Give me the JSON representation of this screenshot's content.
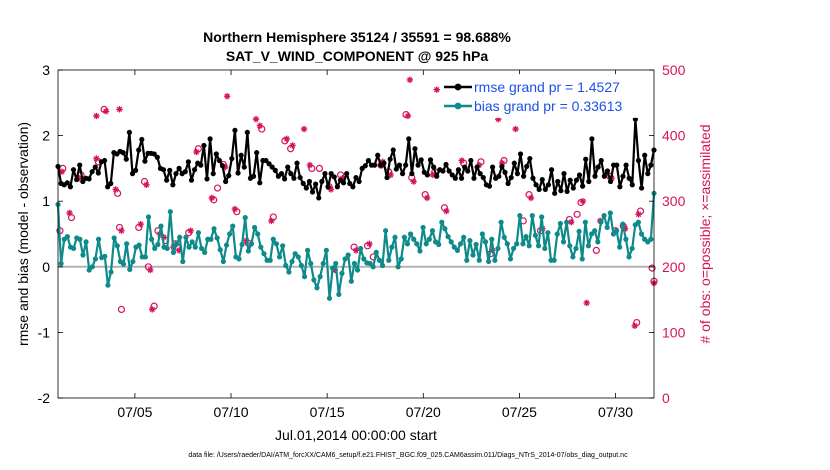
{
  "chart_data": {
    "type": "line",
    "title": "Northern Hemisphere 35124 / 35591 = 98.688%",
    "subtitle": "SAT_V_WIND_COMPONENT @ 925 hPa",
    "xlabel": "Jul.01,2014 00:00:00 start",
    "ylabel_left": "rmse and bias (model - observation)",
    "ylabel_right": "# of obs: o=possible; ×=assimilated",
    "ylim_left": [
      -2,
      3
    ],
    "ylim_right": [
      0,
      500
    ],
    "xlim": [
      0,
      31
    ],
    "left_ticks": [
      -2,
      -1,
      0,
      1,
      2,
      3
    ],
    "right_ticks": [
      0,
      100,
      200,
      300,
      400,
      500
    ],
    "x_ticks": [
      {
        "x": 4,
        "label": "07/05"
      },
      {
        "x": 9,
        "label": "07/10"
      },
      {
        "x": 14,
        "label": "07/15"
      },
      {
        "x": 19,
        "label": "07/20"
      },
      {
        "x": 24,
        "label": "07/25"
      },
      {
        "x": 29,
        "label": "07/30"
      }
    ],
    "zero_line": 0,
    "footnote": "data file: /Users/raeder/DAI/ATM_forcXX/CAM6_setup/f.e21.FHIST_BGC.f09_025.CAM6assim.011/Diags_NTrS_2014-07/obs_diag_output.nc",
    "legend": {
      "position": "top-right",
      "entries": [
        "rmse grand pr = 1.4527",
        "bias grand pr = 0.33613"
      ]
    },
    "series": [
      {
        "name": "rmse grand pr = 1.4527",
        "color": "#000000",
        "axis": "left",
        "values": [
          1.53,
          1.27,
          1.25,
          1.28,
          1.22,
          1.48,
          1.33,
          1.55,
          1.3,
          1.35,
          1.34,
          1.45,
          1.52,
          1.43,
          1.6,
          1.62,
          1.22,
          1.27,
          1.74,
          1.72,
          1.76,
          1.74,
          1.64,
          2.05,
          1.42,
          1.47,
          1.78,
          1.94,
          1.61,
          1.73,
          1.73,
          1.72,
          1.67,
          1.5,
          1.48,
          1.32,
          1.47,
          1.25,
          1.42,
          1.5,
          1.42,
          1.45,
          1.6,
          1.32,
          1.48,
          1.58,
          1.55,
          1.85,
          1.34,
          1.95,
          1.42,
          1.72,
          1.62,
          1.54,
          1.3,
          1.39,
          1.65,
          2.08,
          1.43,
          1.7,
          1.52,
          2.05,
          1.35,
          1.38,
          1.74,
          1.28,
          1.62,
          1.62,
          1.57,
          1.52,
          1.47,
          1.38,
          1.42,
          1.34,
          1.52,
          1.42,
          1.35,
          1.58,
          1.36,
          1.27,
          1.2,
          1.3,
          1.14,
          1.26,
          1.05,
          1.3,
          1.42,
          1.22,
          1.42,
          1.37,
          1.22,
          1.32,
          1.28,
          1.42,
          1.27,
          1.22,
          1.36,
          1.3,
          1.5,
          1.54,
          1.62,
          1.55,
          1.55,
          1.7,
          1.55,
          1.58,
          1.36,
          1.64,
          1.78,
          1.49,
          1.55,
          1.42,
          1.55,
          1.95,
          1.42,
          1.8,
          1.55,
          1.63,
          1.44,
          1.4,
          1.63,
          1.52,
          1.38,
          1.48,
          1.46,
          1.56,
          1.46,
          1.4,
          1.35,
          1.48,
          1.35,
          1.52,
          1.46,
          1.62,
          1.35,
          1.52,
          1.42,
          1.36,
          1.25,
          1.23,
          1.52,
          1.35,
          1.38,
          1.53,
          1.44,
          1.27,
          1.36,
          1.58,
          1.42,
          1.72,
          1.38,
          1.53,
          1.65,
          1.35,
          1.25,
          1.18,
          1.33,
          1.18,
          1.25,
          1.48,
          1.12,
          1.3,
          1.16,
          1.42,
          1.15,
          1.32,
          1.2,
          1.32,
          1.4,
          1.23,
          1.64,
          1.3,
          1.95,
          1.38,
          1.52,
          1.62,
          1.38,
          1.46,
          1.3,
          1.55,
          1.55,
          1.22,
          1.38,
          1.55,
          1.35,
          1.25,
          2.25,
          1.62,
          1.2,
          1.7,
          1.42,
          1.55,
          1.78
        ]
      },
      {
        "name": "bias grand pr = 0.33613",
        "color": "#0f8a8a",
        "axis": "left",
        "values": [
          0.95,
          0.05,
          0.42,
          0.46,
          0.3,
          0.28,
          0.44,
          0.42,
          0.18,
          0.38,
          -0.05,
          0.0,
          0.12,
          0.42,
          0.14,
          0.16,
          -0.28,
          -0.08,
          0.44,
          0.32,
          0.08,
          0.04,
          0.35,
          -0.04,
          0.08,
          0.3,
          0.33,
          0.15,
          0.15,
          0.76,
          0.42,
          0.28,
          0.34,
          0.62,
          0.3,
          0.28,
          0.84,
          0.22,
          0.35,
          0.45,
          0.08,
          0.45,
          0.3,
          0.38,
          0.3,
          0.52,
          0.28,
          0.22,
          0.42,
          0.42,
          0.58,
          0.44,
          0.26,
          0.08,
          0.33,
          0.5,
          0.62,
          0.15,
          0.12,
          0.34,
          0.75,
          0.24,
          0.35,
          0.6,
          0.5,
          0.3,
          0.2,
          0.1,
          0.1,
          0.42,
          0.35,
          0.15,
          0.32,
          0.02,
          -0.08,
          0.08,
          0.2,
          0.15,
          0.02,
          -0.15,
          0.25,
          0.05,
          -0.2,
          -0.32,
          -0.15,
          0.05,
          0.25,
          -0.48,
          -0.02,
          0.05,
          -0.42,
          -0.1,
          0.12,
          0.18,
          -0.22,
          0.05,
          -0.05,
          0.28,
          0.12,
          0.06,
          0.05,
          0.0,
          0.22,
          0.1,
          0.02,
          0.55,
          0.1,
          0.3,
          0.45,
          0.0,
          0.12,
          0.45,
          0.35,
          0.5,
          0.42,
          0.35,
          0.24,
          0.6,
          0.35,
          0.42,
          0.55,
          0.38,
          0.34,
          0.68,
          0.58,
          0.46,
          0.38,
          0.3,
          0.25,
          0.35,
          0.45,
          0.1,
          0.4,
          0.18,
          0.34,
          0.1,
          0.5,
          0.38,
          0.08,
          0.42,
          0.1,
          0.28,
          0.68,
          0.45,
          0.35,
          0.12,
          0.28,
          0.35,
          0.78,
          0.35,
          0.46,
          0.32,
          0.78,
          0.48,
          0.32,
          0.76,
          0.28,
          0.52,
          0.1,
          0.1,
          0.5,
          0.66,
          0.38,
          0.68,
          0.32,
          0.15,
          0.28,
          0.54,
          0.12,
          0.68,
          0.32,
          0.5,
          0.55,
          0.38,
          0.68,
          0.78,
          0.6,
          0.82,
          0.5,
          0.55,
          0.3,
          0.65,
          0.42,
          0.15,
          0.28,
          0.64,
          0.68,
          0.5,
          0.42,
          0.38,
          0.42,
          1.12
        ]
      }
    ],
    "obs_points": {
      "possible": [
        [
          0.25,
          350
        ],
        [
          0.7,
          275
        ],
        [
          1.2,
          340
        ],
        [
          2.1,
          360
        ],
        [
          2.4,
          440
        ],
        [
          3.1,
          312
        ],
        [
          3.2,
          260
        ],
        [
          4.2,
          260
        ],
        [
          4.5,
          330
        ],
        [
          4.7,
          200
        ],
        [
          5.2,
          255
        ],
        [
          5.6,
          240
        ],
        [
          6.2,
          230
        ],
        [
          6.8,
          252
        ],
        [
          7.3,
          380
        ],
        [
          8.1,
          302
        ],
        [
          8.6,
          356
        ],
        [
          9.3,
          284
        ],
        [
          9.9,
          236
        ],
        [
          10.6,
          410
        ],
        [
          11.2,
          276
        ],
        [
          11.8,
          392
        ],
        [
          12.1,
          380
        ],
        [
          13.2,
          350
        ],
        [
          14.1,
          322
        ],
        [
          14.7,
          340
        ],
        [
          15.4,
          230
        ],
        [
          16.1,
          232
        ],
        [
          16.8,
          355
        ],
        [
          17.2,
          345
        ],
        [
          18.1,
          432
        ],
        [
          18.4,
          336
        ],
        [
          19.1,
          310
        ],
        [
          19.6,
          345
        ],
        [
          20.1,
          290
        ],
        [
          21.1,
          358
        ],
        [
          22.0,
          360
        ],
        [
          22.5,
          220
        ],
        [
          23.2,
          362
        ],
        [
          24.5,
          310
        ],
        [
          25.1,
          255
        ],
        [
          26.6,
          272
        ],
        [
          27.2,
          298
        ],
        [
          28.7,
          338
        ],
        [
          29.4,
          262
        ],
        [
          30.3,
          285
        ],
        [
          30.9,
          198
        ],
        [
          31.0,
          178
        ],
        [
          0.1,
          255
        ],
        [
          3.3,
          135
        ],
        [
          5.0,
          140
        ],
        [
          6.1,
          235
        ],
        [
          8.3,
          320
        ],
        [
          13.6,
          350
        ],
        [
          16.4,
          215
        ],
        [
          24.2,
          270
        ],
        [
          27.0,
          280
        ],
        [
          28.0,
          225
        ],
        [
          29.0,
          255
        ],
        [
          30.1,
          115
        ]
      ],
      "assimilated": [
        [
          0.2,
          345
        ],
        [
          0.6,
          282
        ],
        [
          1.1,
          335
        ],
        [
          2.0,
          365
        ],
        [
          2.5,
          437
        ],
        [
          3.0,
          318
        ],
        [
          3.3,
          255
        ],
        [
          4.3,
          265
        ],
        [
          4.6,
          325
        ],
        [
          4.8,
          195
        ],
        [
          5.3,
          250
        ],
        [
          5.5,
          245
        ],
        [
          6.3,
          225
        ],
        [
          6.9,
          255
        ],
        [
          7.2,
          375
        ],
        [
          8.0,
          305
        ],
        [
          8.7,
          352
        ],
        [
          9.2,
          288
        ],
        [
          9.8,
          240
        ],
        [
          10.5,
          415
        ],
        [
          11.1,
          270
        ],
        [
          11.9,
          395
        ],
        [
          12.2,
          385
        ],
        [
          13.1,
          355
        ],
        [
          14.2,
          318
        ],
        [
          14.8,
          335
        ],
        [
          15.5,
          225
        ],
        [
          16.2,
          235
        ],
        [
          16.9,
          360
        ],
        [
          17.3,
          340
        ],
        [
          18.2,
          430
        ],
        [
          18.5,
          330
        ],
        [
          19.2,
          305
        ],
        [
          19.5,
          340
        ],
        [
          20.2,
          285
        ],
        [
          21.0,
          362
        ],
        [
          21.9,
          355
        ],
        [
          22.6,
          225
        ],
        [
          23.1,
          358
        ],
        [
          24.6,
          305
        ],
        [
          25.2,
          258
        ],
        [
          26.7,
          268
        ],
        [
          27.3,
          300
        ],
        [
          28.8,
          335
        ],
        [
          29.5,
          258
        ],
        [
          30.2,
          280
        ],
        [
          31.0,
          175
        ],
        [
          2.0,
          430
        ],
        [
          3.2,
          440
        ],
        [
          8.8,
          460
        ],
        [
          10.3,
          425
        ],
        [
          12.8,
          410
        ],
        [
          18.3,
          485
        ],
        [
          19.7,
          470
        ],
        [
          22.9,
          425
        ],
        [
          23.8,
          410
        ],
        [
          24.6,
          440
        ],
        [
          30.0,
          110
        ],
        [
          27.5,
          145
        ],
        [
          28.2,
          270
        ],
        [
          6.0,
          230
        ],
        [
          4.9,
          135
        ],
        [
          14.4,
          195
        ]
      ]
    },
    "obs_color": "#d6135e"
  }
}
